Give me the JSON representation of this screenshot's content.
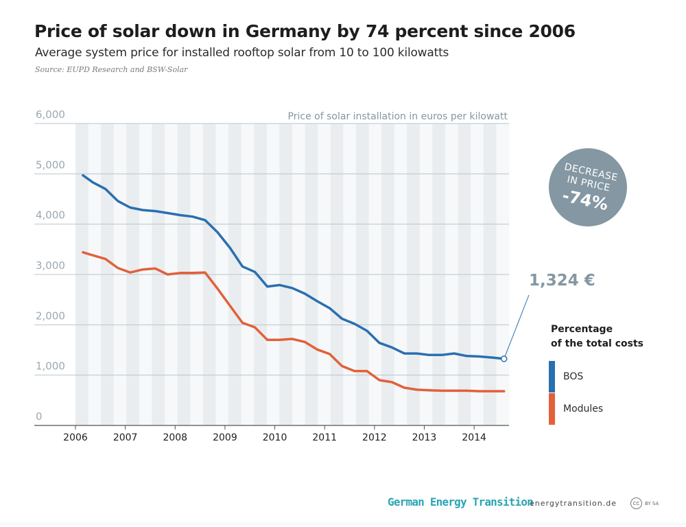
{
  "header": {
    "title": "Price of solar down in Germany by 74 percent since 2006",
    "subtitle": "Average system price for installed rooftop solar from 10 to 100 kilowatts",
    "source": "Source: EUPD Research and BSW-Solar"
  },
  "badge": {
    "line1": "DECREASE",
    "line2": "IN PRICE",
    "line3": "-74%",
    "color": "#8497a2"
  },
  "end_label": "1,324 €",
  "legend": {
    "title_line1": "Percentage",
    "title_line2": "of the total costs",
    "items": [
      {
        "label": "BOS",
        "color": "#2a6fb0"
      },
      {
        "label": "Modules",
        "color": "#e2603a"
      }
    ]
  },
  "footer": {
    "brand": "German Energy Transition",
    "url": "energytransition.de",
    "license_circle": "CC",
    "license_text": "BY SA"
  },
  "chart_data": {
    "type": "line",
    "ylabel": "Price of solar installation in euros per kilowatt",
    "ylim": [
      0,
      6000
    ],
    "yticks": [
      0,
      1000,
      2000,
      3000,
      4000,
      5000,
      6000
    ],
    "ytick_labels": [
      "0",
      "1,000",
      "2,000",
      "3,000",
      "4,000",
      "5,000",
      "6,000"
    ],
    "xlim": [
      2006.0,
      2014.7
    ],
    "x_labels": [
      "2006",
      "2007",
      "2008",
      "2009",
      "2010",
      "2011",
      "2012",
      "2013",
      "2014"
    ],
    "grid": true,
    "legend_position": "right",
    "x": [
      2006.15,
      2006.35,
      2006.6,
      2006.85,
      2007.1,
      2007.35,
      2007.6,
      2007.85,
      2008.1,
      2008.35,
      2008.6,
      2008.85,
      2009.1,
      2009.35,
      2009.6,
      2009.85,
      2010.1,
      2010.35,
      2010.6,
      2010.85,
      2011.1,
      2011.35,
      2011.6,
      2011.85,
      2012.1,
      2012.35,
      2012.6,
      2012.85,
      2013.1,
      2013.35,
      2013.6,
      2013.85,
      2014.1,
      2014.35,
      2014.6
    ],
    "series": [
      {
        "name": "BOS",
        "color": "#2a6fb0",
        "values": [
          4970,
          4830,
          4700,
          4460,
          4330,
          4280,
          4260,
          4220,
          4180,
          4150,
          4080,
          3840,
          3530,
          3160,
          3050,
          2760,
          2790,
          2730,
          2620,
          2470,
          2330,
          2120,
          2020,
          1880,
          1640,
          1550,
          1430,
          1430,
          1400,
          1400,
          1430,
          1380,
          1370,
          1350,
          1324
        ]
      },
      {
        "name": "Modules",
        "color": "#e2603a",
        "values": [
          3440,
          3380,
          3310,
          3130,
          3040,
          3100,
          3120,
          3000,
          3030,
          3030,
          3040,
          2720,
          2380,
          2040,
          1950,
          1700,
          1700,
          1720,
          1660,
          1510,
          1420,
          1180,
          1080,
          1080,
          900,
          860,
          750,
          710,
          700,
          690,
          690,
          690,
          680,
          680,
          680
        ]
      }
    ]
  }
}
